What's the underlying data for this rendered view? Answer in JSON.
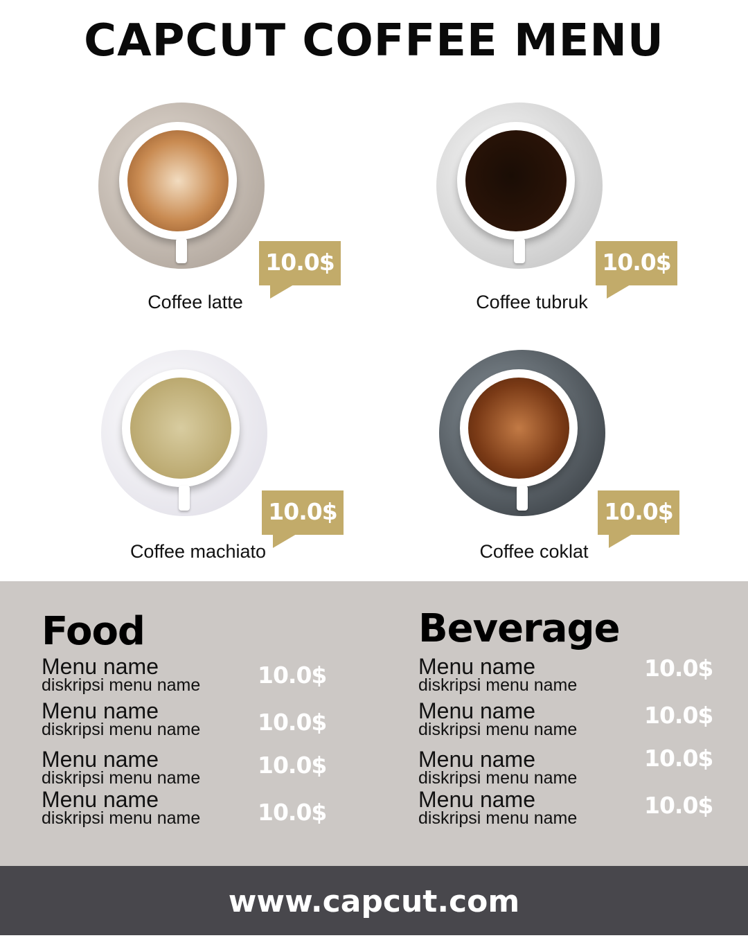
{
  "title": "CAPCUT COFFEE MENU",
  "colors": {
    "accent": "#c2ab6a",
    "band": "#ccc8c5",
    "footer": "#48474c"
  },
  "featured": [
    {
      "name": "Coffee latte",
      "price": "10.0$",
      "drink": "latte"
    },
    {
      "name": "Coffee tubruk",
      "price": "10.0$",
      "drink": "black"
    },
    {
      "name": "Coffee machiato",
      "price": "10.0$",
      "drink": "machiato"
    },
    {
      "name": "Coffee coklat",
      "price": "10.0$",
      "drink": "chocolate"
    }
  ],
  "food": {
    "title": "Food",
    "items": [
      {
        "name": "Menu name",
        "desc": "diskripsi menu name",
        "price": "10.0$"
      },
      {
        "name": "Menu name",
        "desc": "diskripsi menu name",
        "price": "10.0$"
      },
      {
        "name": "Menu name",
        "desc": "diskripsi menu name",
        "price": "10.0$"
      },
      {
        "name": "Menu name",
        "desc": "diskripsi menu name",
        "price": "10.0$"
      }
    ]
  },
  "beverage": {
    "title": "Beverage",
    "items": [
      {
        "name": "Menu name",
        "desc": "diskripsi menu name",
        "price": "10.0$"
      },
      {
        "name": "Menu name",
        "desc": "diskripsi menu name",
        "price": "10.0$"
      },
      {
        "name": "Menu name",
        "desc": "diskripsi menu name",
        "price": "10.0$"
      },
      {
        "name": "Menu name",
        "desc": "diskripsi menu name",
        "price": "10.0$"
      }
    ]
  },
  "footer": {
    "url": "www.capcut.com"
  }
}
